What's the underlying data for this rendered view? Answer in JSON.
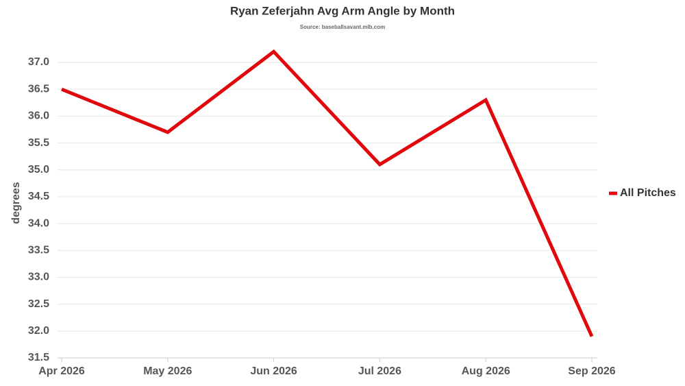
{
  "chart_data": {
    "type": "line",
    "title": "Ryan Zeferjahn Avg Arm Angle by Month",
    "subtitle": "Source: baseballsavant.mlb.com",
    "y_label": "degrees",
    "categories": [
      "Apr 2026",
      "May 2026",
      "Jun 2026",
      "Jul 2026",
      "Aug 2026",
      "Sep 2026"
    ],
    "series": [
      {
        "name": "All Pitches",
        "color": "#e0080c",
        "values": [
          36.5,
          35.7,
          37.2,
          35.1,
          36.3,
          31.9
        ]
      }
    ],
    "ylim": [
      31.5,
      37.25
    ],
    "yticks": [
      31.5,
      {
        "value": 32,
        "label": "32.0"
      },
      32.5,
      {
        "value": 33,
        "label": "33.0"
      },
      33.5,
      {
        "value": 34,
        "label": "34.0"
      },
      34.5,
      {
        "value": 35,
        "label": "35.0"
      },
      35.5,
      {
        "value": 36,
        "label": "36.0"
      },
      36.5,
      {
        "value": 37,
        "label": "37.0"
      }
    ],
    "grid": true,
    "legend": "right"
  }
}
